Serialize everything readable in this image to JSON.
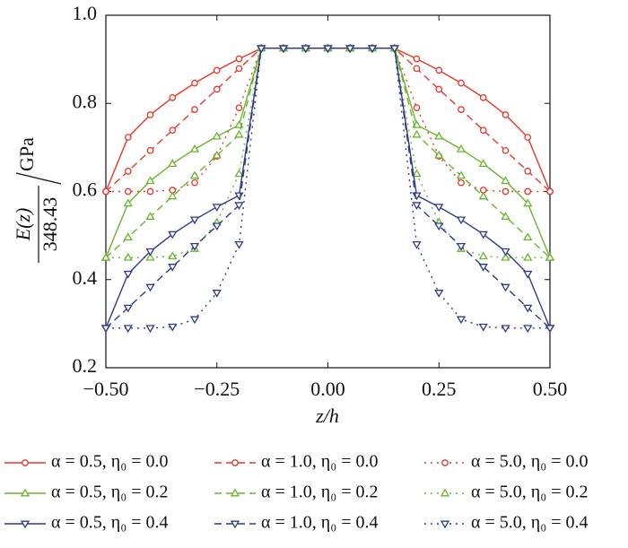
{
  "chart_data": {
    "type": "line",
    "xlabel": "z/h",
    "ylabel": {
      "numerator": "E(z)",
      "denominator": "348.43",
      "unit": "GPa"
    },
    "x": [
      -0.5,
      -0.45,
      -0.4,
      -0.35,
      -0.3,
      -0.25,
      -0.2,
      -0.15,
      -0.1,
      -0.05,
      0,
      0.05,
      0.1,
      0.15,
      0.2,
      0.25,
      0.3,
      0.35,
      0.4,
      0.45,
      0.5
    ],
    "xlim": [
      -0.5,
      0.5
    ],
    "xticks": [
      {
        "value": -0.5,
        "label": "−0.50"
      },
      {
        "value": -0.25,
        "label": "−0.25"
      },
      {
        "value": 0,
        "label": "0.00"
      },
      {
        "value": 0.25,
        "label": "0.25"
      },
      {
        "value": 0.5,
        "label": "0.50"
      }
    ],
    "ylim": [
      0.2,
      1.0
    ],
    "yticks": [
      0.2,
      0.4,
      0.6,
      0.8,
      {
        "value": 1.0,
        "label": "1.0"
      }
    ],
    "series": [
      {
        "name": "α = 0.5, η₀ = 0.0",
        "color": "#e8372a",
        "dash": "solid",
        "marker": "circle",
        "values": [
          0.6,
          0.723,
          0.774,
          0.813,
          0.846,
          0.875,
          0.901,
          0.925,
          0.925,
          0.925,
          0.925,
          0.925,
          0.925,
          0.925,
          0.901,
          0.875,
          0.846,
          0.813,
          0.774,
          0.723,
          0.6
        ]
      },
      {
        "name": "α = 1.0, η₀ = 0.0",
        "color": "#e8372a",
        "dash": "dashed",
        "marker": "circle",
        "values": [
          0.6,
          0.646,
          0.693,
          0.739,
          0.786,
          0.832,
          0.879,
          0.925,
          0.925,
          0.925,
          0.925,
          0.925,
          0.925,
          0.925,
          0.879,
          0.832,
          0.786,
          0.739,
          0.693,
          0.646,
          0.6
        ]
      },
      {
        "name": "α = 5.0, η₀ = 0.0",
        "color": "#e8372a",
        "dash": "dotted",
        "marker": "circle",
        "values": [
          0.6,
          0.6,
          0.6,
          0.603,
          0.62,
          0.68,
          0.79,
          0.925,
          0.925,
          0.925,
          0.925,
          0.925,
          0.925,
          0.925,
          0.79,
          0.68,
          0.62,
          0.603,
          0.6,
          0.6,
          0.6
        ]
      },
      {
        "name": "α = 0.5, η₀ = 0.2",
        "color": "#6ab42d",
        "dash": "solid",
        "marker": "triangle-up",
        "values": [
          0.45,
          0.573,
          0.624,
          0.663,
          0.696,
          0.725,
          0.751,
          0.925,
          0.925,
          0.925,
          0.925,
          0.925,
          0.925,
          0.925,
          0.751,
          0.725,
          0.696,
          0.663,
          0.624,
          0.573,
          0.45
        ]
      },
      {
        "name": "α = 1.0, η₀ = 0.2",
        "color": "#6ab42d",
        "dash": "dashed",
        "marker": "triangle-up",
        "values": [
          0.45,
          0.496,
          0.543,
          0.589,
          0.636,
          0.682,
          0.729,
          0.925,
          0.925,
          0.925,
          0.925,
          0.925,
          0.925,
          0.925,
          0.729,
          0.682,
          0.636,
          0.589,
          0.543,
          0.496,
          0.45
        ]
      },
      {
        "name": "α = 5.0, η₀ = 0.2",
        "color": "#6ab42d",
        "dash": "dotted",
        "marker": "triangle-up",
        "values": [
          0.45,
          0.45,
          0.45,
          0.453,
          0.47,
          0.53,
          0.64,
          0.925,
          0.925,
          0.925,
          0.925,
          0.925,
          0.925,
          0.925,
          0.64,
          0.53,
          0.47,
          0.453,
          0.45,
          0.45,
          0.45
        ]
      },
      {
        "name": "α = 0.5, η₀ = 0.4",
        "color": "#2e3a8c",
        "dash": "solid",
        "marker": "triangle-down",
        "values": [
          0.29,
          0.413,
          0.464,
          0.503,
          0.536,
          0.565,
          0.591,
          0.925,
          0.925,
          0.925,
          0.925,
          0.925,
          0.925,
          0.925,
          0.591,
          0.565,
          0.536,
          0.503,
          0.464,
          0.413,
          0.29
        ]
      },
      {
        "name": "α = 1.0, η₀ = 0.4",
        "color": "#2e3a8c",
        "dash": "dashed",
        "marker": "triangle-down",
        "values": [
          0.29,
          0.336,
          0.383,
          0.429,
          0.476,
          0.522,
          0.569,
          0.925,
          0.925,
          0.925,
          0.925,
          0.925,
          0.925,
          0.925,
          0.569,
          0.522,
          0.476,
          0.429,
          0.383,
          0.336,
          0.29
        ]
      },
      {
        "name": "α = 5.0, η₀ = 0.4",
        "color": "#2e3a8c",
        "dash": "dotted",
        "marker": "triangle-down",
        "values": [
          0.29,
          0.29,
          0.29,
          0.293,
          0.31,
          0.37,
          0.48,
          0.925,
          0.925,
          0.925,
          0.925,
          0.925,
          0.925,
          0.925,
          0.48,
          0.37,
          0.31,
          0.293,
          0.29,
          0.29,
          0.29
        ]
      }
    ]
  }
}
